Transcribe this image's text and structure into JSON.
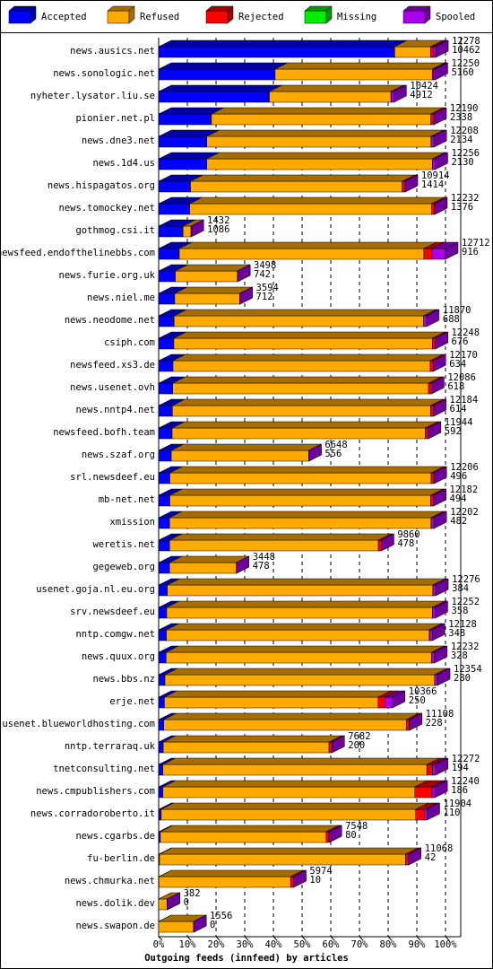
{
  "chart_data": {
    "type": "bar",
    "orientation": "horizontal",
    "stacked": true,
    "x_label": "Outgoing feeds (innfeed) by articles",
    "categories": [
      "news.ausics.net",
      "news.sonologic.net",
      "nyheter.lysator.liu.se",
      "pionier.net.pl",
      "news.dne3.net",
      "news.1d4.us",
      "news.hispagatos.org",
      "news.tomockey.net",
      "gothmog.csi.it",
      "newsfeed.endofthelinebbs.com",
      "news.furie.org.uk",
      "news.niel.me",
      "news.neodome.net",
      "csiph.com",
      "newsfeed.xs3.de",
      "news.usenet.ovh",
      "news.nntp4.net",
      "newsfeed.bofh.team",
      "news.szaf.org",
      "srl.newsdeef.eu",
      "mb-net.net",
      "xmission",
      "weretis.net",
      "gegeweb.org",
      "usenet.goja.nl.eu.org",
      "srv.newsdeef.eu",
      "nntp.comgw.net",
      "news.quux.org",
      "news.bbs.nz",
      "erje.net",
      "usenet.blueworldhosting.com",
      "nntp.terraraq.uk",
      "tnetconsulting.net",
      "news.cmpublishers.com",
      "news.corradoroberto.it",
      "news.cgarbs.de",
      "fu-berlin.de",
      "news.chmurka.net",
      "news.dolik.dev",
      "news.swapon.de"
    ],
    "offered": [
      12278,
      12250,
      10424,
      12190,
      12208,
      12256,
      10914,
      12232,
      1432,
      12712,
      3498,
      3594,
      11870,
      12248,
      12170,
      12086,
      12184,
      11944,
      6648,
      12206,
      12182,
      12202,
      9860,
      3448,
      12276,
      12252,
      12128,
      12232,
      12354,
      10366,
      11108,
      7682,
      12272,
      12240,
      11904,
      7548,
      11068,
      5974,
      382,
      1556
    ],
    "accepted": [
      10462,
      5160,
      4912,
      2338,
      2134,
      2130,
      1414,
      1376,
      1086,
      916,
      742,
      712,
      688,
      676,
      634,
      618,
      614,
      592,
      556,
      496,
      494,
      482,
      478,
      478,
      384,
      358,
      348,
      328,
      280,
      250,
      228,
      200,
      194,
      186,
      110,
      80,
      42,
      10,
      0,
      0
    ],
    "series": [
      {
        "name": "Accepted",
        "color": "#0000ff",
        "values": [
          82.3,
          40.6,
          38.6,
          18.4,
          16.8,
          16.8,
          11.1,
          10.8,
          8.5,
          7.2,
          5.8,
          5.6,
          5.4,
          5.3,
          5.0,
          4.9,
          4.8,
          4.7,
          4.4,
          3.9,
          3.9,
          3.8,
          3.8,
          3.8,
          3.0,
          2.8,
          2.7,
          2.6,
          2.2,
          2.0,
          1.8,
          1.6,
          1.5,
          1.5,
          0.9,
          0.6,
          0.3,
          0.1,
          0,
          0
        ]
      },
      {
        "name": "Refused",
        "color": "#ffaa00",
        "values": [
          12.5,
          54.8,
          42.4,
          76.5,
          78.2,
          78.6,
          73.8,
          84.4,
          2.8,
          85.3,
          21.7,
          22.7,
          87.0,
          90.1,
          89.7,
          89.2,
          90.0,
          88.3,
          47.9,
          91.1,
          90.9,
          91.2,
          72.8,
          23.3,
          92.6,
          92.6,
          91.7,
          92.6,
          94.0,
          74.5,
          84.6,
          57.8,
          92.0,
          87.8,
          88.7,
          57.8,
          85.8,
          45.9,
          3.0,
          12.2
        ]
      },
      {
        "name": "Rejected",
        "color": "#ff0000",
        "values": [
          1.0,
          0.5,
          0,
          1.0,
          0,
          0,
          1.0,
          1.0,
          0,
          2.8,
          0,
          0,
          0,
          1.0,
          1.0,
          1.0,
          1.0,
          1.0,
          0,
          1.0,
          1.0,
          0,
          1.0,
          0,
          0,
          0,
          0,
          0,
          0,
          2.5,
          1.0,
          1.0,
          2.0,
          6.0,
          3.0,
          1.0,
          1.0,
          1.0,
          0,
          0
        ]
      },
      {
        "name": "Missing",
        "color": "#00ee00",
        "values": [
          0,
          0,
          0,
          0,
          0,
          0,
          0,
          0,
          0,
          0,
          0,
          0,
          0,
          0,
          0,
          0,
          0,
          0,
          0,
          0,
          0,
          0,
          0,
          0,
          0,
          0,
          0,
          0,
          0,
          0,
          0,
          0,
          0,
          0,
          0,
          0,
          0,
          0,
          0,
          0
        ]
      },
      {
        "name": "Spooled",
        "color": "#aa00ee",
        "values": [
          0.8,
          0.5,
          1.0,
          0,
          1.0,
          1.0,
          0,
          0,
          0,
          4.7,
          0,
          0,
          1.0,
          0,
          0,
          0,
          0,
          0,
          0,
          0,
          0,
          1.0,
          0,
          0,
          1.0,
          1.0,
          1.0,
          1.0,
          1.0,
          2.5,
          0,
          0,
          1.0,
          1.0,
          1.0,
          0,
          0,
          0,
          0,
          0
        ]
      }
    ],
    "xlim": [
      0,
      100
    ],
    "xticks": [
      {
        "value": 0,
        "label": "0%"
      },
      {
        "value": 10,
        "label": "10%"
      },
      {
        "value": 20,
        "label": "20%"
      },
      {
        "value": 30,
        "label": "30%"
      },
      {
        "value": 40,
        "label": "40%"
      },
      {
        "value": 50,
        "label": "50%"
      },
      {
        "value": 60,
        "label": "60%"
      },
      {
        "value": 70,
        "label": "70%"
      },
      {
        "value": 80,
        "label": "80%"
      },
      {
        "value": 90,
        "label": "90%"
      },
      {
        "value": 100,
        "label": "100%"
      }
    ],
    "grid": true,
    "legend": "top"
  }
}
